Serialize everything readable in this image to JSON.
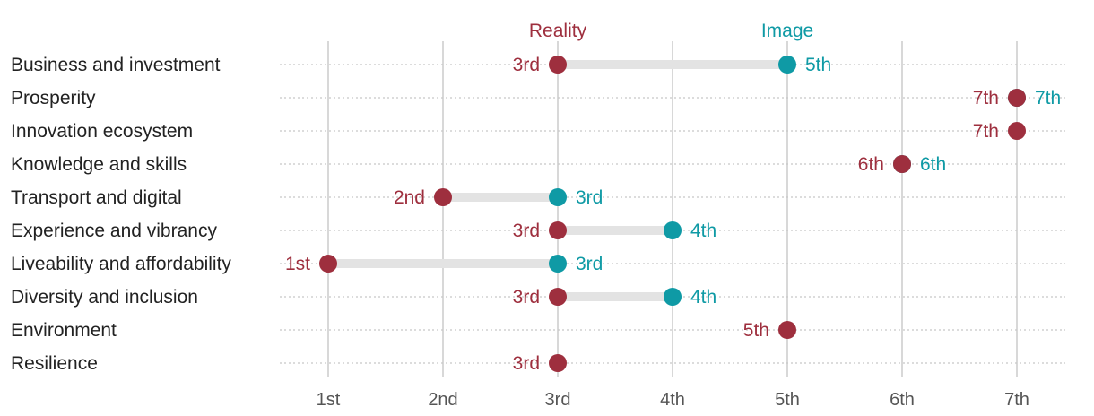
{
  "chart_data": {
    "type": "dot-range",
    "title": "",
    "xlabel": "",
    "ylabel": "",
    "xlim": [
      1,
      7
    ],
    "x_ticks": [
      1,
      2,
      3,
      4,
      5,
      6,
      7
    ],
    "x_tick_labels": [
      "1st",
      "2nd",
      "3rd",
      "4th",
      "5th",
      "6th",
      "7th"
    ],
    "categories": [
      "Business and investment",
      "Prosperity",
      "Innovation ecosystem",
      "Knowledge and skills",
      "Transport and digital",
      "Experience and vibrancy",
      "Liveability and affordability",
      "Diversity and inclusion",
      "Environment",
      "Resilience"
    ],
    "series": [
      {
        "name": "Reality",
        "color": "#9e2f3e",
        "values": [
          3,
          7,
          7,
          6,
          2,
          3,
          1,
          3,
          5,
          3
        ],
        "labels": [
          "3rd",
          "7th",
          "7th",
          "6th",
          "2nd",
          "3rd",
          "1st",
          "3rd",
          "5th",
          "3rd"
        ]
      },
      {
        "name": "Image",
        "color": "#0f9aa5",
        "values": [
          5,
          7,
          null,
          6,
          3,
          4,
          3,
          4,
          null,
          null
        ],
        "labels": [
          "5th",
          "7th",
          "",
          "6th",
          "3rd",
          "4th",
          "3rd",
          "4th",
          "",
          ""
        ]
      }
    ],
    "series_header_anchor_category": 0,
    "grid": true
  }
}
